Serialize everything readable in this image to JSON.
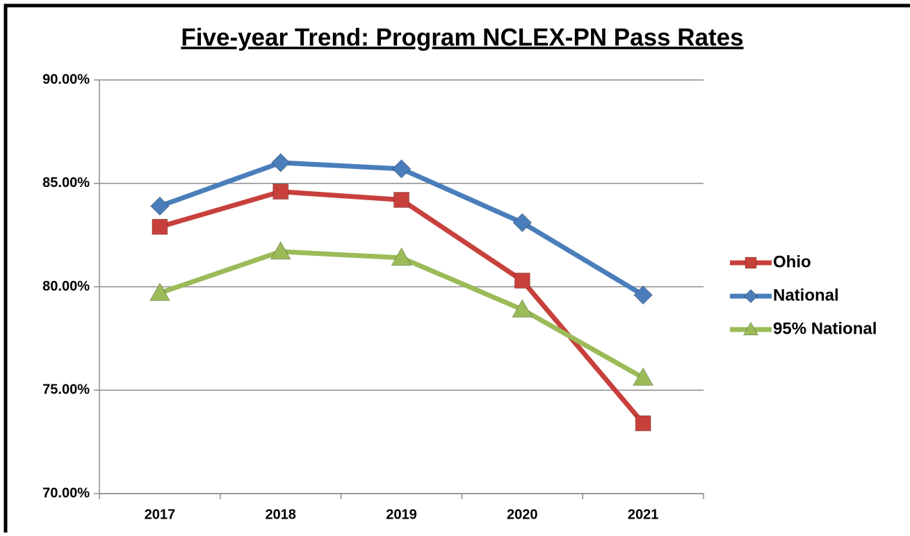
{
  "chart_data": {
    "type": "line",
    "title": "Five-year Trend: Program NCLEX-PN Pass Rates",
    "categories": [
      "2017",
      "2018",
      "2019",
      "2020",
      "2021"
    ],
    "series": [
      {
        "name": "Ohio",
        "color": "#c8403c",
        "marker": "square",
        "values": [
          82.9,
          84.6,
          84.2,
          80.3,
          73.4
        ]
      },
      {
        "name": "National",
        "color": "#4a7ebb",
        "marker": "diamond",
        "values": [
          83.9,
          86.0,
          85.7,
          83.1,
          79.6
        ]
      },
      {
        "name": "95% National",
        "color": "#9bbb59",
        "marker": "triangle",
        "values": [
          79.7,
          81.7,
          81.4,
          78.9,
          75.6
        ]
      }
    ],
    "ylim": [
      70,
      90
    ],
    "yticks": [
      {
        "value": 70,
        "label": "70.00%"
      },
      {
        "value": 75,
        "label": "75.00%"
      },
      {
        "value": 80,
        "label": "80.00%"
      },
      {
        "value": 85,
        "label": "85.00%"
      },
      {
        "value": 90,
        "label": "90.00%"
      }
    ],
    "grid": true,
    "legend": "right"
  }
}
